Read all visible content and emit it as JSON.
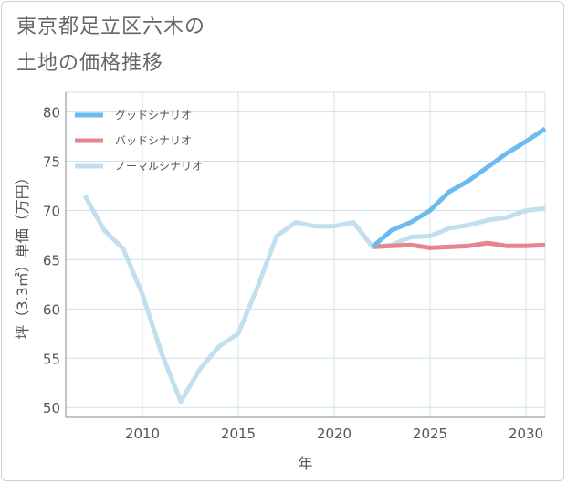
{
  "title_line1": "東京都足立区六木の",
  "title_line2": "土地の価格推移",
  "colors": {
    "good": "#6cbbf0",
    "bad": "#e5868e",
    "normal": "#c2dfee",
    "grid": "#cde0ec",
    "axis": "#888888",
    "text": "#555555"
  },
  "chart_data": {
    "type": "line",
    "xlabel": "年",
    "ylabel": "坪（3.3㎡）単価（万円）",
    "xlim": [
      2006,
      2031
    ],
    "ylim": [
      49,
      82
    ],
    "xticks": [
      2010,
      2015,
      2020,
      2025,
      2030
    ],
    "yticks": [
      50,
      55,
      60,
      65,
      70,
      75,
      80
    ],
    "grid": true,
    "legend_position": "top-left",
    "series": [
      {
        "name": "グッドシナリオ",
        "color_key": "good",
        "x": [
          2022,
          2023,
          2024,
          2025,
          2026,
          2027,
          2028,
          2029,
          2030,
          2031
        ],
        "y": [
          66.3,
          68.0,
          68.8,
          70.0,
          71.9,
          73.0,
          74.4,
          75.8,
          77.0,
          78.3
        ]
      },
      {
        "name": "バッドシナリオ",
        "color_key": "bad",
        "x": [
          2022,
          2023,
          2024,
          2025,
          2026,
          2027,
          2028,
          2029,
          2030,
          2031
        ],
        "y": [
          66.3,
          66.4,
          66.5,
          66.2,
          66.3,
          66.4,
          66.7,
          66.4,
          66.4,
          66.5
        ]
      },
      {
        "name": "ノーマルシナリオ",
        "color_key": "normal",
        "x": [
          2007,
          2008,
          2009,
          2010,
          2011,
          2012,
          2013,
          2014,
          2015,
          2016,
          2017,
          2018,
          2019,
          2020,
          2021,
          2022,
          2023,
          2024,
          2025,
          2026,
          2027,
          2028,
          2029,
          2030,
          2031
        ],
        "y": [
          71.5,
          68.0,
          66.1,
          61.5,
          55.5,
          50.6,
          53.9,
          56.2,
          57.5,
          62.2,
          67.4,
          68.8,
          68.4,
          68.4,
          68.8,
          66.3,
          66.5,
          67.3,
          67.4,
          68.2,
          68.5,
          69.0,
          69.3,
          70.0,
          70.2
        ]
      }
    ]
  }
}
